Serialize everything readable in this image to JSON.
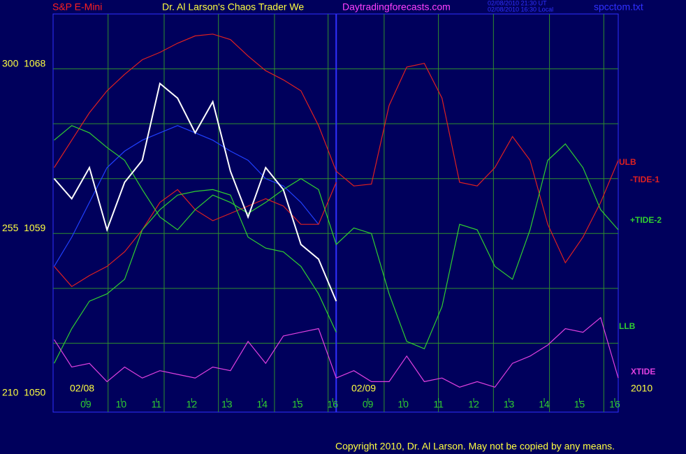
{
  "chart_data": {
    "type": "line",
    "header": {
      "symbol": "S&P E-Mini",
      "title": "Dr. Al Larson's Chaos Trader We",
      "site": "Daytradingforecasts.com",
      "time_ut": "02/08/2010 21:30 UT",
      "time_local": "02/08/2010 16:30 Local",
      "file": "spcctom.txt"
    },
    "dates": [
      "02/08",
      "02/09",
      "2010"
    ],
    "copyright": "Copyright 2010, Dr. Al Larson. May not be copied by any means.",
    "xlim": [
      -0.93,
      15.1
    ],
    "xticks": [
      {
        "value": 0,
        "label": "09"
      },
      {
        "value": 1,
        "label": "10"
      },
      {
        "value": 2,
        "label": "11"
      },
      {
        "value": 3,
        "label": "12"
      },
      {
        "value": 4,
        "label": "13"
      },
      {
        "value": 5,
        "label": "14"
      },
      {
        "value": 6,
        "label": "15"
      },
      {
        "value": 7,
        "label": "16"
      },
      {
        "value": 8,
        "label": "09"
      },
      {
        "value": 9,
        "label": "10"
      },
      {
        "value": 10,
        "label": "11"
      },
      {
        "value": 11,
        "label": "12"
      },
      {
        "value": 12,
        "label": "13"
      },
      {
        "value": 13,
        "label": "14"
      },
      {
        "value": 14,
        "label": "15"
      },
      {
        "value": 15,
        "label": "16"
      }
    ],
    "xgrid": [
      0.63,
      2.22,
      3.76,
      5.35,
      6.87,
      8.46,
      10.0,
      11.56,
      13.15,
      14.69
    ],
    "day_break": 7.1,
    "ylim": [
      1050,
      1071
    ],
    "yticks": [
      {
        "value": 1068,
        "label": "300  1068"
      },
      {
        "value": 1059,
        "label": "255  1059"
      },
      {
        "value": 1050,
        "label": "210  1050"
      }
    ],
    "ygrid": [
      1053,
      1056,
      1059,
      1062,
      1065,
      1068
    ],
    "x": [
      -0.9,
      -0.4,
      0.1,
      0.6,
      1.1,
      1.6,
      2.1,
      2.6,
      3.1,
      3.6,
      4.1,
      4.6,
      5.1,
      5.6,
      6.1,
      6.6,
      7.1,
      7.6,
      8.1,
      8.6,
      9.1,
      9.6,
      10.1,
      10.6,
      11.1,
      11.6,
      12.1,
      12.6,
      13.1,
      13.6,
      14.1,
      14.6,
      15.1
    ],
    "series": [
      {
        "color": "#2040ff",
        "values": [
          1057.2,
          1058.8,
          1060.7,
          1062.6,
          1063.5,
          1064.1,
          1064.5,
          1064.9,
          1064.5,
          1064.1,
          1063.5,
          1063.0,
          1062.0,
          1061.6,
          1060.7,
          1059.5,
          null,
          null,
          null,
          null,
          null,
          null,
          null,
          null,
          null,
          null,
          null,
          null,
          null,
          null,
          null,
          null,
          null
        ]
      },
      {
        "name": "ULB",
        "color": "#e02020",
        "values": [
          1062.6,
          1064.1,
          1065.6,
          1066.8,
          1067.7,
          1068.5,
          1068.9,
          1069.4,
          1069.8,
          1069.9,
          1069.6,
          1068.7,
          1067.9,
          1067.4,
          1066.8,
          1064.9,
          1062.4,
          1061.6,
          1061.7,
          1066.0,
          1068.1,
          1068.3,
          1066.4,
          1061.8,
          1061.6,
          1062.6,
          1064.3,
          1063.0,
          1059.5,
          1057.4,
          1058.8,
          1060.7,
          1063.0
        ]
      },
      {
        "name": "-TIDE-1",
        "color": "#e02020",
        "values": [
          1057.2,
          1056.1,
          1056.7,
          1057.2,
          1058.0,
          1059.2,
          1060.7,
          1061.4,
          1060.3,
          1059.7,
          1060.1,
          1060.5,
          1060.9,
          1060.5,
          1059.5,
          1059.5,
          1061.8,
          null,
          null,
          null,
          null,
          null,
          null,
          null,
          null,
          null,
          null,
          null,
          null,
          null,
          null,
          null,
          null
        ]
      },
      {
        "name": "+TIDE-2",
        "color": "#30d030",
        "values": [
          1064.1,
          1064.9,
          1064.5,
          1063.7,
          1063.0,
          1061.4,
          1059.9,
          1059.2,
          1060.3,
          1061.1,
          1060.7,
          1060.1,
          1060.7,
          1061.4,
          1062.0,
          1061.4,
          1058.4,
          1059.3,
          1059.0,
          1055.7,
          1053.1,
          1052.7,
          1055.0,
          1059.5,
          1059.2,
          1057.2,
          1056.5,
          1059.2,
          1063.0,
          1063.9,
          1062.6,
          1060.3,
          1059.2
        ]
      },
      {
        "name": "LLB",
        "color": "#30d030",
        "values": [
          1051.9,
          1053.8,
          1055.3,
          1055.7,
          1056.5,
          1059.2,
          1060.3,
          1061.1,
          1061.3,
          1061.4,
          1061.1,
          1058.8,
          1058.2,
          1058.0,
          1057.2,
          1055.7,
          1053.6,
          null,
          null,
          null,
          null,
          null,
          null,
          null,
          null,
          null,
          null,
          null,
          null,
          null,
          null,
          null,
          null
        ]
      },
      {
        "name": "XTIDE",
        "color": "#e040e0",
        "values": [
          1053.2,
          1051.7,
          1051.9,
          1050.9,
          1051.7,
          1051.1,
          1051.5,
          1051.3,
          1051.1,
          1051.7,
          1051.5,
          1053.1,
          1051.9,
          1053.4,
          1053.6,
          1053.8,
          1051.1,
          1051.5,
          1050.9,
          1050.9,
          1052.3,
          1050.9,
          1051.1,
          1050.6,
          1050.9,
          1050.6,
          1051.9,
          1052.3,
          1052.9,
          1053.8,
          1053.6,
          1054.4,
          1051.1
        ]
      },
      {
        "color": "#ffffff",
        "values": [
          1062.0,
          1060.9,
          1062.6,
          1059.2,
          1061.8,
          1063.0,
          1067.2,
          1066.4,
          1064.5,
          1066.2,
          1062.4,
          1059.9,
          1062.6,
          1061.4,
          1058.4,
          1057.6,
          1055.3,
          null,
          null,
          null,
          null,
          null,
          null,
          null,
          null,
          null,
          null,
          null,
          null,
          null,
          null,
          null,
          null
        ]
      }
    ]
  }
}
